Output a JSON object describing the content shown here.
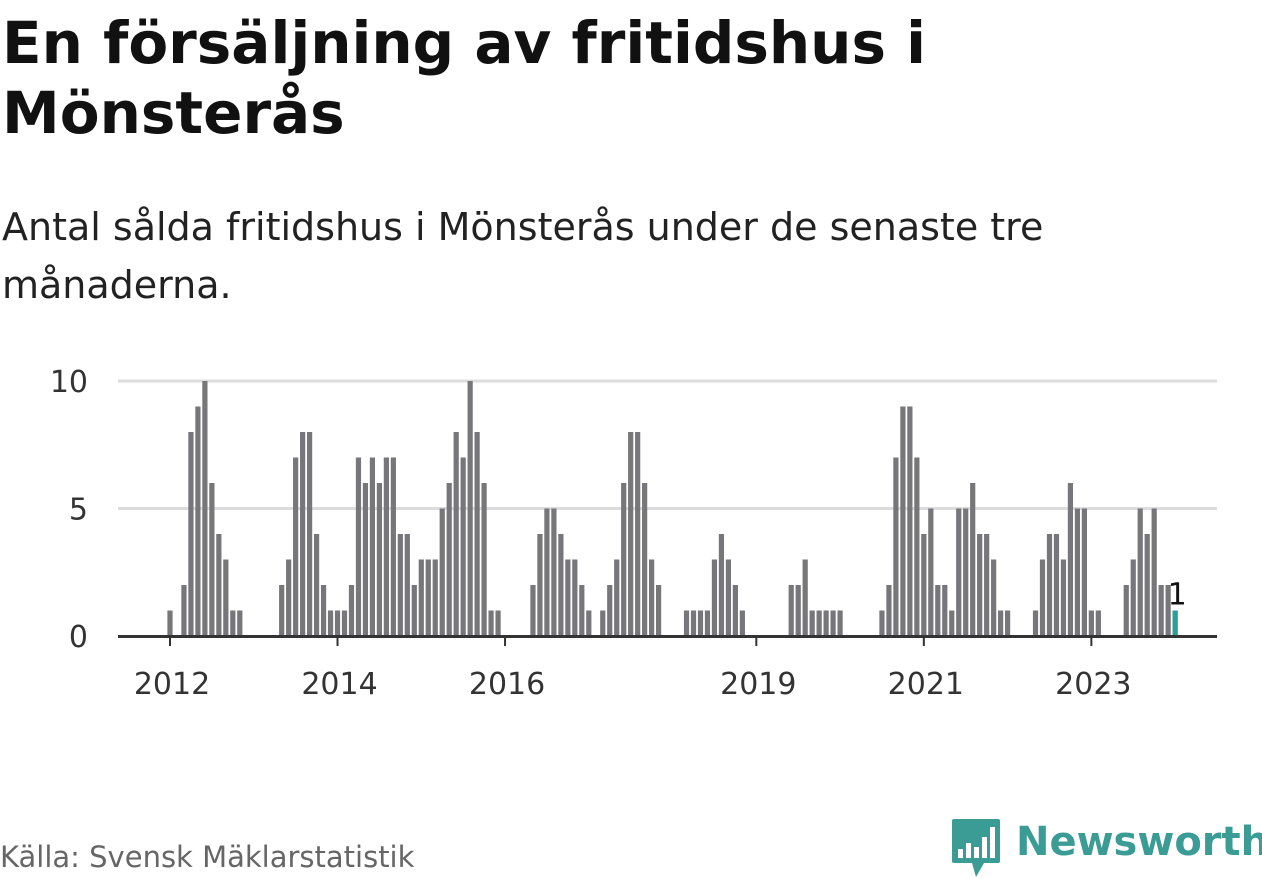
{
  "chart_data": {
    "type": "bar",
    "title": "En försäljning av fritidshus i Mönsterås",
    "subtitle": "Antal sålda fritidshus i Mönsterås under de senaste tre månaderna.",
    "source": "Källa: Svensk Mäklarstatistik",
    "brand": "Newsworthy",
    "xlabel": "",
    "ylabel": "",
    "ylim": [
      0,
      10
    ],
    "y_ticks": [
      "0",
      "5",
      "10"
    ],
    "x_tick_labels": [
      {
        "label": "2012",
        "index": 0
      },
      {
        "label": "2014",
        "index": 24
      },
      {
        "label": "2016",
        "index": 48
      },
      {
        "label": "2019",
        "index": 84
      },
      {
        "label": "2021",
        "index": 108
      },
      {
        "label": "2023",
        "index": 132
      }
    ],
    "start": "2012-01",
    "values": [
      1,
      0,
      2,
      8,
      9,
      10,
      6,
      4,
      3,
      1,
      1,
      0,
      0,
      0,
      0,
      0,
      2,
      3,
      7,
      8,
      8,
      4,
      2,
      1,
      1,
      1,
      2,
      7,
      6,
      7,
      6,
      7,
      7,
      4,
      4,
      2,
      3,
      3,
      3,
      5,
      6,
      8,
      7,
      10,
      8,
      6,
      1,
      1,
      0,
      0,
      0,
      0,
      2,
      4,
      5,
      5,
      4,
      3,
      3,
      2,
      1,
      0,
      1,
      2,
      3,
      6,
      8,
      8,
      6,
      3,
      2,
      0,
      0,
      0,
      1,
      1,
      1,
      1,
      3,
      4,
      3,
      2,
      1,
      0,
      0,
      0,
      0,
      0,
      0,
      2,
      2,
      3,
      1,
      1,
      1,
      1,
      1,
      0,
      0,
      0,
      0,
      0,
      1,
      2,
      7,
      9,
      9,
      7,
      4,
      5,
      2,
      2,
      1,
      5,
      5,
      6,
      4,
      4,
      3,
      1,
      1,
      0,
      0,
      0,
      1,
      3,
      4,
      4,
      3,
      6,
      5,
      5,
      1,
      1,
      0,
      0,
      0,
      2,
      3,
      5,
      4,
      5,
      2,
      2,
      1
    ],
    "highlight": {
      "index": 144,
      "label": "1",
      "color": "#2aa198"
    },
    "colors": {
      "bar": "#76767b",
      "highlight": "#2aa198",
      "grid": "#dcdcdc",
      "axis": "#333333",
      "brand": "#3a9c95"
    }
  }
}
